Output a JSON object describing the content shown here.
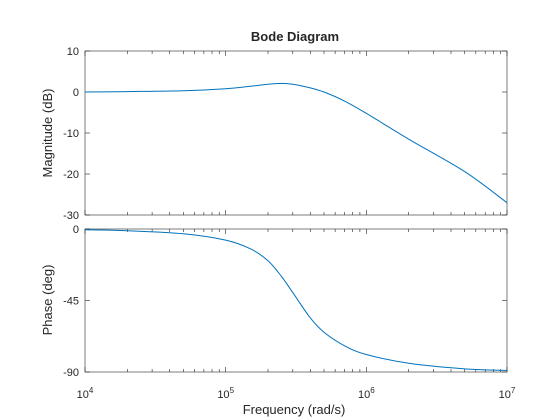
{
  "chart_data": {
    "type": "line",
    "title": "Bode Diagram",
    "xlabel": "Frequency  (rad/s)",
    "x_scale": "log",
    "xlim": [
      10000,
      10000000
    ],
    "x_tick_labels": [
      {
        "base": "10",
        "exp": "4"
      },
      {
        "base": "10",
        "exp": "5"
      },
      {
        "base": "10",
        "exp": "6"
      },
      {
        "base": "10",
        "exp": "7"
      }
    ],
    "x_tick_values": [
      10000,
      100000,
      1000000,
      10000000
    ],
    "grid": false,
    "series_color": "#0072BD",
    "panels": [
      {
        "ylabel": "Magnitude (dB)",
        "ylim": [
          -30,
          10
        ],
        "yticks": [
          10,
          0,
          -10,
          -20,
          -30
        ],
        "series": [
          {
            "x": [
              10000,
              20000,
              50000,
              100000,
              150000,
              200000,
              250000,
              300000,
              400000,
              500000,
              700000,
              1000000,
              2000000,
              5000000,
              10000000
            ],
            "y": [
              0,
              0.1,
              0.3,
              0.8,
              1.4,
              1.9,
              2.1,
              1.9,
              1.0,
              0,
              -2.2,
              -5.2,
              -11.5,
              -19.4,
              -27
            ]
          }
        ]
      },
      {
        "ylabel": "Phase (deg)",
        "ylim": [
          -90,
          0
        ],
        "yticks": [
          0,
          -45,
          -90
        ],
        "series": [
          {
            "x": [
              10000,
              20000,
              50000,
              100000,
              150000,
              200000,
              250000,
              300000,
              400000,
              500000,
              700000,
              1000000,
              2000000,
              5000000,
              10000000
            ],
            "y": [
              -0.5,
              -1.1,
              -3,
              -7,
              -12.5,
              -20,
              -30,
              -40,
              -56,
              -65,
              -73.5,
              -79,
              -84.5,
              -88,
              -89
            ]
          }
        ]
      }
    ]
  }
}
